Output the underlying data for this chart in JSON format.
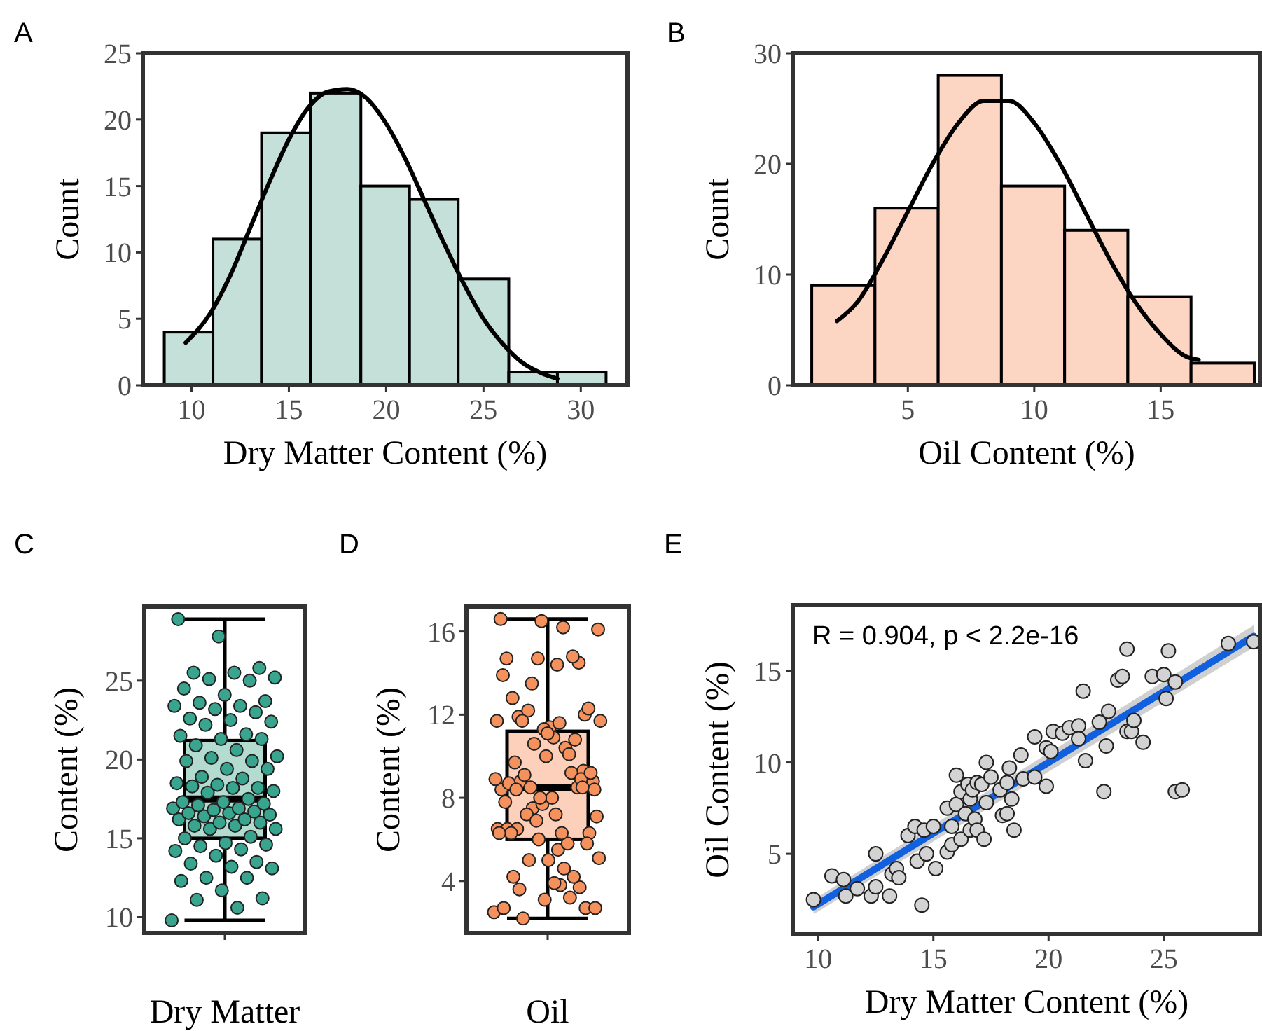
{
  "chart_data": [
    {
      "type": "histogram",
      "title": "A",
      "xlabel": "Dry Matter Content (%)",
      "ylabel": "Count",
      "xlim": [
        7.5,
        32.4
      ],
      "ylim": [
        0,
        25
      ],
      "xticks": [
        10,
        15,
        20,
        25,
        30
      ],
      "yticks": [
        0,
        5,
        10,
        15,
        20,
        25
      ],
      "series": [
        {
          "type": "histogram",
          "color": "#c5e0d9",
          "bins": [
            8.6,
            11.1,
            13.6,
            16.1,
            18.7,
            21.2,
            23.7,
            26.3,
            28.8,
            31.3
          ],
          "values": [
            4,
            11,
            19,
            22,
            15,
            14,
            8,
            1,
            1
          ]
        },
        {
          "type": "line",
          "color": "#000000",
          "x": [
            9.7,
            11,
            12,
            13,
            14,
            15,
            16,
            17,
            18,
            19,
            20,
            21,
            22,
            23,
            24,
            25,
            26,
            27,
            28,
            28.8
          ],
          "values": [
            3.2,
            5.5,
            8.3,
            11.8,
            15.3,
            18.5,
            20.9,
            22.1,
            22.3,
            21.6,
            19.7,
            17,
            13.8,
            10.6,
            7.6,
            5,
            3.1,
            1.7,
            0.9,
            0.5
          ]
        }
      ]
    },
    {
      "type": "histogram",
      "title": "B",
      "xlabel": "Oil Content (%)",
      "ylabel": "Count",
      "xlim": [
        0.45,
        18.95
      ],
      "ylim": [
        0,
        30
      ],
      "xticks": [
        5,
        10,
        15
      ],
      "yticks": [
        0,
        10,
        20,
        30
      ],
      "series": [
        {
          "type": "histogram",
          "color": "#fdd5c3",
          "bins": [
            1.2,
            3.7,
            6.2,
            8.7,
            11.2,
            13.7,
            16.2,
            18.7
          ],
          "values": [
            9,
            16,
            28,
            18,
            14,
            8,
            2
          ]
        },
        {
          "type": "line",
          "color": "#000000",
          "x": [
            2.2,
            3,
            4,
            5,
            6,
            7,
            8,
            9,
            10,
            11,
            12,
            13,
            14,
            15,
            16,
            16.5
          ],
          "values": [
            5.8,
            7.5,
            11.3,
            15.7,
            20.1,
            23.7,
            25.7,
            25.7,
            23.7,
            20.1,
            15.7,
            11.3,
            7.5,
            4.6,
            2.6,
            2.3
          ]
        }
      ]
    },
    {
      "type": "box",
      "title": "C",
      "ylabel": "Content (%)",
      "categories": [
        "Dry Matter"
      ],
      "ylim": [
        9.0,
        29.7
      ],
      "yticks": [
        10,
        15,
        20,
        25
      ],
      "series": [
        {
          "type": "box",
          "color": "#b3dbd0",
          "boxes": [
            {
              "low": 9.8,
              "q1": 15.0,
              "median": 17.5,
              "q3": 21.2,
              "high": 28.9
            }
          ]
        },
        {
          "type": "scatter",
          "color": "#3aa58f",
          "x": [
            "Dry Matter",
            "Dry Matter",
            "Dry Matter",
            "Dry Matter",
            "Dry Matter",
            "Dry Matter",
            "Dry Matter",
            "Dry Matter",
            "Dry Matter",
            "Dry Matter",
            "Dry Matter",
            "Dry Matter",
            "Dry Matter",
            "Dry Matter",
            "Dry Matter",
            "Dry Matter",
            "Dry Matter",
            "Dry Matter",
            "Dry Matter",
            "Dry Matter",
            "Dry Matter",
            "Dry Matter",
            "Dry Matter",
            "Dry Matter",
            "Dry Matter",
            "Dry Matter",
            "Dry Matter",
            "Dry Matter",
            "Dry Matter",
            "Dry Matter",
            "Dry Matter",
            "Dry Matter",
            "Dry Matter",
            "Dry Matter",
            "Dry Matter",
            "Dry Matter",
            "Dry Matter",
            "Dry Matter",
            "Dry Matter",
            "Dry Matter",
            "Dry Matter",
            "Dry Matter",
            "Dry Matter",
            "Dry Matter",
            "Dry Matter",
            "Dry Matter",
            "Dry Matter",
            "Dry Matter",
            "Dry Matter",
            "Dry Matter",
            "Dry Matter",
            "Dry Matter",
            "Dry Matter",
            "Dry Matter",
            "Dry Matter",
            "Dry Matter",
            "Dry Matter",
            "Dry Matter",
            "Dry Matter",
            "Dry Matter",
            "Dry Matter",
            "Dry Matter",
            "Dry Matter",
            "Dry Matter",
            "Dry Matter",
            "Dry Matter",
            "Dry Matter",
            "Dry Matter",
            "Dry Matter",
            "Dry Matter",
            "Dry Matter",
            "Dry Matter",
            "Dry Matter",
            "Dry Matter",
            "Dry Matter",
            "Dry Matter",
            "Dry Matter",
            "Dry Matter",
            "Dry Matter",
            "Dry Matter",
            "Dry Matter",
            "Dry Matter"
          ],
          "values": [
            9.8,
            10.6,
            11.1,
            11.2,
            11.7,
            12.3,
            12.5,
            12.5,
            13.1,
            13.2,
            13.4,
            13.5,
            13.9,
            14.2,
            14.3,
            14.5,
            14.6,
            14.7,
            15.0,
            15.1,
            15.6,
            15.6,
            15.8,
            15.8,
            16.0,
            16.0,
            16.2,
            16.2,
            16.4,
            16.5,
            16.6,
            16.6,
            16.7,
            16.8,
            16.9,
            16.9,
            17.1,
            17.2,
            17.3,
            17.3,
            17.5,
            17.9,
            18.0,
            18.2,
            18.3,
            18.2,
            18.4,
            18.5,
            18.8,
            18.9,
            19.4,
            19.4,
            19.9,
            19.9,
            20.1,
            20.2,
            20.6,
            20.9,
            21.3,
            21.3,
            21.5,
            21.6,
            22.2,
            22.4,
            22.5,
            22.6,
            23.0,
            23.2,
            23.4,
            23.4,
            23.6,
            23.7,
            24.1,
            24.5,
            25.0,
            25.1,
            25.2,
            25.5,
            25.5,
            25.8,
            27.8,
            28.9
          ]
        }
      ]
    },
    {
      "type": "box",
      "title": "D",
      "ylabel": "Content (%)",
      "categories": [
        "Oil"
      ],
      "ylim": [
        1.5,
        17.2
      ],
      "yticks": [
        4,
        8,
        12,
        16
      ],
      "series": [
        {
          "type": "box",
          "color": "#fcd0bb",
          "boxes": [
            {
              "low": 2.2,
              "q1": 6.0,
              "median": 8.5,
              "q3": 11.2,
              "high": 16.6
            }
          ]
        },
        {
          "type": "scatter",
          "color": "#f4915c",
          "x": [
            "Oil",
            "Oil",
            "Oil",
            "Oil",
            "Oil",
            "Oil",
            "Oil",
            "Oil",
            "Oil",
            "Oil",
            "Oil",
            "Oil",
            "Oil",
            "Oil",
            "Oil",
            "Oil",
            "Oil",
            "Oil",
            "Oil",
            "Oil",
            "Oil",
            "Oil",
            "Oil",
            "Oil",
            "Oil",
            "Oil",
            "Oil",
            "Oil",
            "Oil",
            "Oil",
            "Oil",
            "Oil",
            "Oil",
            "Oil",
            "Oil",
            "Oil",
            "Oil",
            "Oil",
            "Oil",
            "Oil",
            "Oil",
            "Oil",
            "Oil",
            "Oil",
            "Oil",
            "Oil",
            "Oil",
            "Oil",
            "Oil",
            "Oil",
            "Oil",
            "Oil",
            "Oil",
            "Oil",
            "Oil",
            "Oil",
            "Oil",
            "Oil",
            "Oil",
            "Oil",
            "Oil",
            "Oil",
            "Oil",
            "Oil",
            "Oil",
            "Oil",
            "Oil",
            "Oil",
            "Oil",
            "Oil",
            "Oil",
            "Oil",
            "Oil",
            "Oil",
            "Oil",
            "Oil",
            "Oil",
            "Oil",
            "Oil",
            "Oil",
            "Oil",
            "Oil"
          ],
          "values": [
            2.5,
            3.8,
            3.6,
            2.7,
            3.1,
            2.7,
            3.2,
            5.0,
            2.7,
            3.9,
            4.2,
            3.7,
            6.0,
            6.5,
            4.6,
            2.2,
            6.3,
            5.0,
            6.5,
            4.2,
            7.5,
            5.1,
            5.5,
            6.5,
            9.3,
            7.7,
            8.4,
            5.8,
            7.2,
            8.8,
            8.0,
            6.3,
            8.5,
            6.9,
            8.9,
            6.3,
            8.8,
            5.8,
            10.0,
            7.8,
            9.2,
            8.5,
            7.1,
            7.2,
            9.7,
            8.9,
            8.0,
            6.3,
            10.4,
            9.1,
            9.2,
            11.4,
            8.7,
            10.8,
            10.6,
            11.7,
            11.6,
            11.9,
            12.0,
            11.3,
            13.9,
            10.1,
            12.2,
            8.4,
            10.9,
            12.8,
            14.5,
            14.7,
            11.7,
            16.2,
            11.7,
            12.3,
            11.1,
            14.7,
            14.8,
            13.5,
            16.1,
            14.4,
            8.4,
            8.5,
            16.5,
            16.6
          ]
        }
      ]
    },
    {
      "type": "scatter",
      "title": "E",
      "xlabel": "Dry Matter Content (%)",
      "ylabel": "Oil Content (%)",
      "xlim": [
        8.9,
        29.2
      ],
      "ylim": [
        0.6,
        18.6
      ],
      "xticks": [
        10,
        15,
        20,
        25
      ],
      "yticks": [
        5,
        10,
        15
      ],
      "annotations": [
        "R = 0.904, p < 2.2e-16"
      ],
      "series": [
        {
          "type": "line",
          "color": "#1060e0",
          "x": [
            9.8,
            28.9
          ],
          "values": [
            2.1,
            16.9
          ],
          "lower": [
            1.7,
            16.3
          ],
          "upper": [
            2.5,
            17.5
          ]
        },
        {
          "type": "scatter",
          "color": "#d3d3d3",
          "x": [
            9.8,
            10.6,
            11.1,
            11.2,
            11.7,
            12.3,
            12.5,
            12.5,
            13.1,
            13.2,
            13.4,
            13.5,
            13.9,
            14.2,
            14.3,
            14.5,
            14.6,
            14.7,
            15.0,
            15.1,
            15.6,
            15.6,
            15.8,
            15.8,
            16.0,
            16.0,
            16.2,
            16.2,
            16.4,
            16.5,
            16.6,
            16.6,
            16.7,
            16.8,
            16.9,
            16.9,
            17.1,
            17.2,
            17.3,
            17.3,
            17.5,
            17.9,
            18.0,
            18.2,
            18.3,
            18.2,
            18.4,
            18.5,
            18.8,
            18.9,
            19.4,
            19.4,
            19.9,
            19.9,
            20.1,
            20.2,
            20.6,
            20.9,
            21.3,
            21.3,
            21.5,
            21.6,
            22.2,
            22.4,
            22.5,
            22.6,
            23.0,
            23.2,
            23.4,
            23.4,
            23.6,
            23.7,
            24.1,
            24.5,
            25.0,
            25.1,
            25.2,
            25.5,
            25.5,
            25.8,
            27.8,
            28.9
          ],
          "values": [
            2.5,
            3.8,
            3.6,
            2.7,
            3.1,
            2.7,
            3.2,
            5.0,
            2.7,
            3.9,
            4.2,
            3.7,
            6.0,
            6.5,
            4.6,
            2.2,
            6.3,
            5.0,
            6.5,
            4.2,
            7.5,
            5.1,
            5.5,
            6.5,
            9.3,
            7.7,
            8.4,
            5.8,
            7.2,
            8.8,
            8.0,
            6.3,
            8.5,
            6.9,
            8.9,
            6.3,
            8.8,
            5.8,
            10.0,
            7.8,
            9.2,
            8.5,
            7.1,
            7.2,
            9.7,
            8.9,
            8.0,
            6.3,
            10.4,
            9.1,
            9.2,
            11.4,
            8.7,
            10.8,
            10.6,
            11.7,
            11.6,
            11.9,
            12.0,
            11.3,
            13.9,
            10.1,
            12.2,
            8.4,
            10.9,
            12.8,
            14.5,
            14.7,
            11.7,
            16.2,
            11.7,
            12.3,
            11.1,
            14.7,
            14.8,
            13.5,
            16.1,
            14.4,
            8.4,
            8.5,
            16.5,
            16.6
          ]
        }
      ]
    }
  ]
}
